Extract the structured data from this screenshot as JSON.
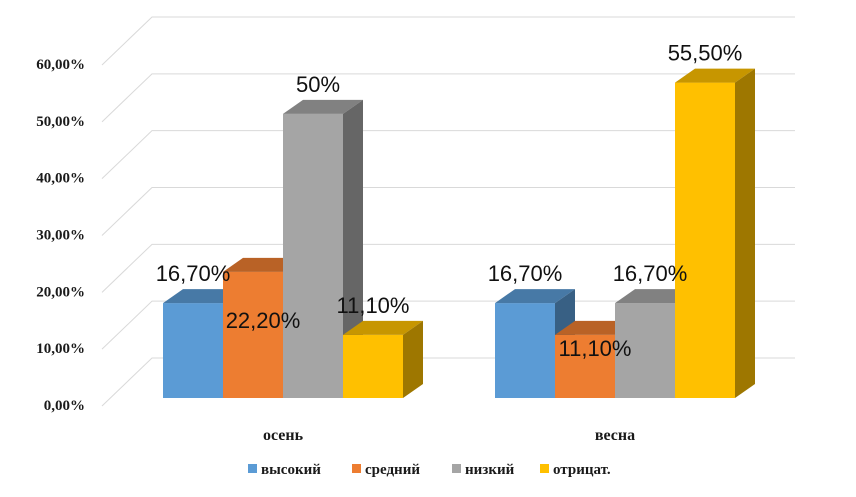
{
  "chart_data": {
    "type": "bar",
    "categories": [
      "осень",
      "весна"
    ],
    "series": [
      {
        "name": "высокий",
        "values": [
          16.7,
          16.7
        ],
        "labels": [
          "16,70%",
          "16,70%"
        ],
        "color": "#5b9bd5"
      },
      {
        "name": "средний",
        "values": [
          22.2,
          11.1
        ],
        "labels": [
          "22,20%",
          "11,10%"
        ],
        "color": "#ed7d31"
      },
      {
        "name": "низкий",
        "values": [
          50.0,
          16.7
        ],
        "labels": [
          "50%",
          "16,70%"
        ],
        "color": "#a5a5a5"
      },
      {
        "name": "отрицат.",
        "values": [
          11.1,
          55.5
        ],
        "labels": [
          "11,10%",
          "55,50%"
        ],
        "color": "#ffc000"
      }
    ],
    "ylim": [
      0,
      60
    ],
    "yticks": [
      0,
      10,
      20,
      30,
      40,
      50,
      60
    ],
    "ytick_labels": [
      "0,00%",
      "10,00%",
      "20,00%",
      "30,00%",
      "40,00%",
      "50,00%",
      "60,00%"
    ],
    "grid": true,
    "legend": "bottom",
    "title": "",
    "xlabel": "",
    "ylabel": ""
  }
}
